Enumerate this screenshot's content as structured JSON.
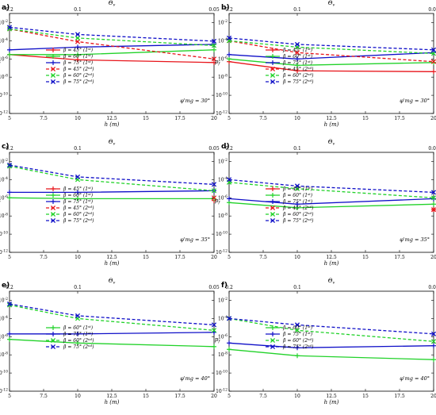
{
  "figure": {
    "colors": {
      "45": "#e8151b",
      "60": "#22d22a",
      "75": "#1010c8"
    },
    "panels": [
      {
        "letter": "a)",
        "chart_data": {
          "type": "line",
          "xlabel": "h (m)",
          "x2label": "Θ_v",
          "ylabel": "p_f",
          "x_ticks": [
            "5",
            "7.5",
            "10",
            "12.5",
            "15",
            "17.5",
            "20"
          ],
          "x2_ticks": [
            "0.2",
            "0.1",
            "0.05"
          ],
          "y_ticks": [
            "10^-2",
            "10^-4",
            "10^-6",
            "10^-8",
            "10^-10",
            "10^-12"
          ],
          "xlim": [
            5,
            20
          ],
          "ylim_log10": [
            -12,
            -1
          ],
          "annotation": "φ'mg = 30°",
          "series": [
            {
              "name": "β = 45° (1st)",
              "beta": "45",
              "order": "1st",
              "x": [
                5,
                10,
                20
              ],
              "y": [
                3e-06,
                8e-07,
                4e-07
              ]
            },
            {
              "name": "β = 60° (1st)",
              "beta": "60",
              "order": "1st",
              "x": [
                5,
                10,
                20
              ],
              "y": [
                3e-06,
                3e-06,
                1e-05
              ]
            },
            {
              "name": "β = 75° (1st)",
              "beta": "75",
              "order": "1st",
              "x": [
                5,
                10,
                20
              ],
              "y": [
                1e-05,
                2e-05,
                4e-05
              ]
            },
            {
              "name": "β = 45° (2nd)",
              "beta": "45",
              "order": "2nd",
              "x": [
                5,
                10,
                20
              ],
              "y": [
                0.002,
                8e-05,
                1e-06
              ]
            },
            {
              "name": "β = 60° (2nd)",
              "beta": "60",
              "order": "2nd",
              "x": [
                5,
                10,
                20
              ],
              "y": [
                0.002,
                0.0002,
                3e-05
              ]
            },
            {
              "name": "β = 75° (2nd)",
              "beta": "75",
              "order": "2nd",
              "x": [
                5,
                10,
                20
              ],
              "y": [
                0.003,
                0.0005,
                9e-05
              ]
            }
          ]
        }
      },
      {
        "letter": "b)",
        "chart_data": {
          "type": "line",
          "xlabel": "h (m)",
          "x2label": "Θ_v",
          "ylabel": "p_f",
          "x_ticks": [
            "5",
            "7.5",
            "10",
            "12.5",
            "15",
            "17.5",
            "20"
          ],
          "x2_ticks": [
            "0.2",
            "0.1",
            "0.05"
          ],
          "y_ticks": [
            "10^-2",
            "10^-4",
            "10^-6",
            "10^-8",
            "10^-10",
            "10^-12"
          ],
          "xlim": [
            5,
            20
          ],
          "ylim_log10": [
            -12,
            -1
          ],
          "annotation": "φ'mg = 30°",
          "series": [
            {
              "name": "β = 45° (1st)",
              "beta": "45",
              "order": "1st",
              "x": [
                5,
                10,
                20
              ],
              "y": [
                5e-07,
                5e-08,
                4e-08
              ]
            },
            {
              "name": "β = 60° (1st)",
              "beta": "60",
              "order": "1st",
              "x": [
                5,
                10,
                20
              ],
              "y": [
                1e-06,
                2e-07,
                4e-07
              ]
            },
            {
              "name": "β = 75° (1st)",
              "beta": "75",
              "order": "1st",
              "x": [
                5,
                10,
                20
              ],
              "y": [
                3e-06,
                1e-06,
                5e-06
              ]
            },
            {
              "name": "β = 45° (2nd)",
              "beta": "45",
              "order": "2nd",
              "x": [
                5,
                10,
                20
              ],
              "y": [
                0.0001,
                5e-06,
                5e-07
              ]
            },
            {
              "name": "β = 60° (2nd)",
              "beta": "60",
              "order": "2nd",
              "x": [
                5,
                10,
                20
              ],
              "y": [
                0.0001,
                2e-05,
                4e-06
              ]
            },
            {
              "name": "β = 75° (2nd)",
              "beta": "75",
              "order": "2nd",
              "x": [
                5,
                10,
                20
              ],
              "y": [
                0.0002,
                4e-05,
                1e-05
              ]
            }
          ]
        }
      },
      {
        "letter": "c)",
        "chart_data": {
          "type": "line",
          "xlabel": "h (m)",
          "x2label": "Θ_v",
          "ylabel": "p_f",
          "x_ticks": [
            "5",
            "7.5",
            "10",
            "12.5",
            "15",
            "17.5",
            "20"
          ],
          "x2_ticks": [
            "0.2",
            "0.1",
            "0.05"
          ],
          "y_ticks": [
            "10^-2",
            "10^-4",
            "10^-6",
            "10^-8",
            "10^-10",
            "10^-12"
          ],
          "xlim": [
            5,
            20
          ],
          "ylim_log10": [
            -12,
            -1
          ],
          "annotation": "φ'mg = 35°",
          "series": [
            {
              "name": "β = 45° (1st)",
              "beta": "45",
              "order": "1st",
              "x": [
                20
              ],
              "y": [
                5e-07
              ]
            },
            {
              "name": "β = 60° (1st)",
              "beta": "60",
              "order": "1st",
              "x": [
                5,
                10,
                20
              ],
              "y": [
                1e-06,
                8e-07,
                8e-07
              ]
            },
            {
              "name": "β = 75° (1st)",
              "beta": "75",
              "order": "1st",
              "x": [
                5,
                10,
                20
              ],
              "y": [
                4e-06,
                4e-06,
                6e-06
              ]
            },
            {
              "name": "β = 45° (2nd)",
              "beta": "45",
              "order": "2nd",
              "x": [
                20
              ],
              "y": [
                1e-06
              ]
            },
            {
              "name": "β = 60° (2nd)",
              "beta": "60",
              "order": "2nd",
              "x": [
                5,
                10,
                20
              ],
              "y": [
                0.003,
                0.0001,
                6e-06
              ]
            },
            {
              "name": "β = 75° (2nd)",
              "beta": "75",
              "order": "2nd",
              "x": [
                5,
                10,
                20
              ],
              "y": [
                0.004,
                0.0002,
                3e-05
              ]
            }
          ]
        }
      },
      {
        "letter": "d)",
        "chart_data": {
          "type": "line",
          "xlabel": "h (m)",
          "x2label": "Θ_v",
          "ylabel": "p_f",
          "x_ticks": [
            "5",
            "7.5",
            "10",
            "12.5",
            "15",
            "17.5",
            "20"
          ],
          "x2_ticks": [
            "0.2",
            "0.1",
            "0.05"
          ],
          "y_ticks": [
            "10^-2",
            "10^-4",
            "10^-6",
            "10^-8",
            "10^-10",
            "10^-12"
          ],
          "xlim": [
            5,
            20
          ],
          "ylim_log10": [
            -12,
            -1
          ],
          "annotation": "φ'mg = 35°",
          "series": [
            {
              "name": "β = 45° (1st)",
              "beta": "45",
              "order": "1st",
              "x": [
                20
              ],
              "y": [
                5e-08
              ]
            },
            {
              "name": "β = 60° (1st)",
              "beta": "60",
              "order": "1st",
              "x": [
                5,
                10,
                20
              ],
              "y": [
                3e-07,
                8e-08,
                2e-07
              ]
            },
            {
              "name": "β = 75° (1st)",
              "beta": "75",
              "order": "1st",
              "x": [
                5,
                10,
                20
              ],
              "y": [
                8e-07,
                2e-07,
                8e-07
              ]
            },
            {
              "name": "β = 45° (2nd)",
              "beta": "45",
              "order": "2nd",
              "x": [
                20
              ],
              "y": [
                5e-08
              ]
            },
            {
              "name": "β = 60° (2nd)",
              "beta": "60",
              "order": "2nd",
              "x": [
                5,
                10,
                20
              ],
              "y": [
                5e-05,
                1e-05,
                1e-06
              ]
            },
            {
              "name": "β = 75° (2nd)",
              "beta": "75",
              "order": "2nd",
              "x": [
                5,
                10,
                20
              ],
              "y": [
                0.0001,
                2e-05,
                4e-06
              ]
            }
          ]
        }
      },
      {
        "letter": "e)",
        "chart_data": {
          "type": "line",
          "xlabel": "h (m)",
          "x2label": "Θ_v",
          "ylabel": "p_f",
          "x_ticks": [
            "5",
            "7.5",
            "10",
            "12.5",
            "15",
            "17.5",
            "20"
          ],
          "x2_ticks": [
            "0.2",
            "0.1",
            "0.05"
          ],
          "y_ticks": [
            "10^-2",
            "10^-4",
            "10^-6",
            "10^-8",
            "10^-10",
            "10^-12"
          ],
          "xlim": [
            5,
            20
          ],
          "ylim_log10": [
            -12,
            -1
          ],
          "annotation": "φ'mg = 40°",
          "series": [
            {
              "name": "β = 60° (1st)",
              "beta": "60",
              "order": "1st",
              "x": [
                5,
                10,
                20
              ],
              "y": [
                5e-07,
                2e-07,
                8e-08
              ]
            },
            {
              "name": "β = 75° (1st)",
              "beta": "75",
              "order": "1st",
              "x": [
                5,
                10,
                20
              ],
              "y": [
                2e-06,
                2e-06,
                3e-06
              ]
            },
            {
              "name": "β = 60° (2nd)",
              "beta": "60",
              "order": "2nd",
              "x": [
                5,
                10,
                20
              ],
              "y": [
                0.003,
                0.0001,
                5e-06
              ]
            },
            {
              "name": "β = 75° (2nd)",
              "beta": "75",
              "order": "2nd",
              "x": [
                5,
                10,
                20
              ],
              "y": [
                0.004,
                0.0002,
                2e-05
              ]
            }
          ]
        }
      },
      {
        "letter": "f)",
        "chart_data": {
          "type": "line",
          "xlabel": "h (m)",
          "x2label": "Θ_v",
          "ylabel": "p_f",
          "x_ticks": [
            "5",
            "7.5",
            "10",
            "12.5",
            "15",
            "17.5",
            "20"
          ],
          "x2_ticks": [
            "0.2",
            "0.1",
            "0.05"
          ],
          "y_ticks": [
            "10^-2",
            "10^-4",
            "10^-6",
            "10^-8",
            "10^-10",
            "10^-12"
          ],
          "xlim": [
            5,
            20
          ],
          "ylim_log10": [
            -12,
            -1
          ],
          "annotation": "φ'mg = 40°",
          "series": [
            {
              "name": "β = 60° (1st)",
              "beta": "60",
              "order": "1st",
              "x": [
                5,
                10,
                20
              ],
              "y": [
                4e-08,
                8e-09,
                3e-09
              ]
            },
            {
              "name": "β = 75° (1st)",
              "beta": "75",
              "order": "1st",
              "x": [
                5,
                10,
                20
              ],
              "y": [
                2e-07,
                6e-08,
                1e-07
              ]
            },
            {
              "name": "β = 60° (2nd)",
              "beta": "60",
              "order": "2nd",
              "x": [
                5,
                10,
                20
              ],
              "y": [
                0.0001,
                5e-06,
                3e-07
              ]
            },
            {
              "name": "β = 75° (2nd)",
              "beta": "75",
              "order": "2nd",
              "x": [
                5,
                10,
                20
              ],
              "y": [
                0.0001,
                2e-05,
                2e-06
              ]
            }
          ]
        }
      }
    ]
  }
}
